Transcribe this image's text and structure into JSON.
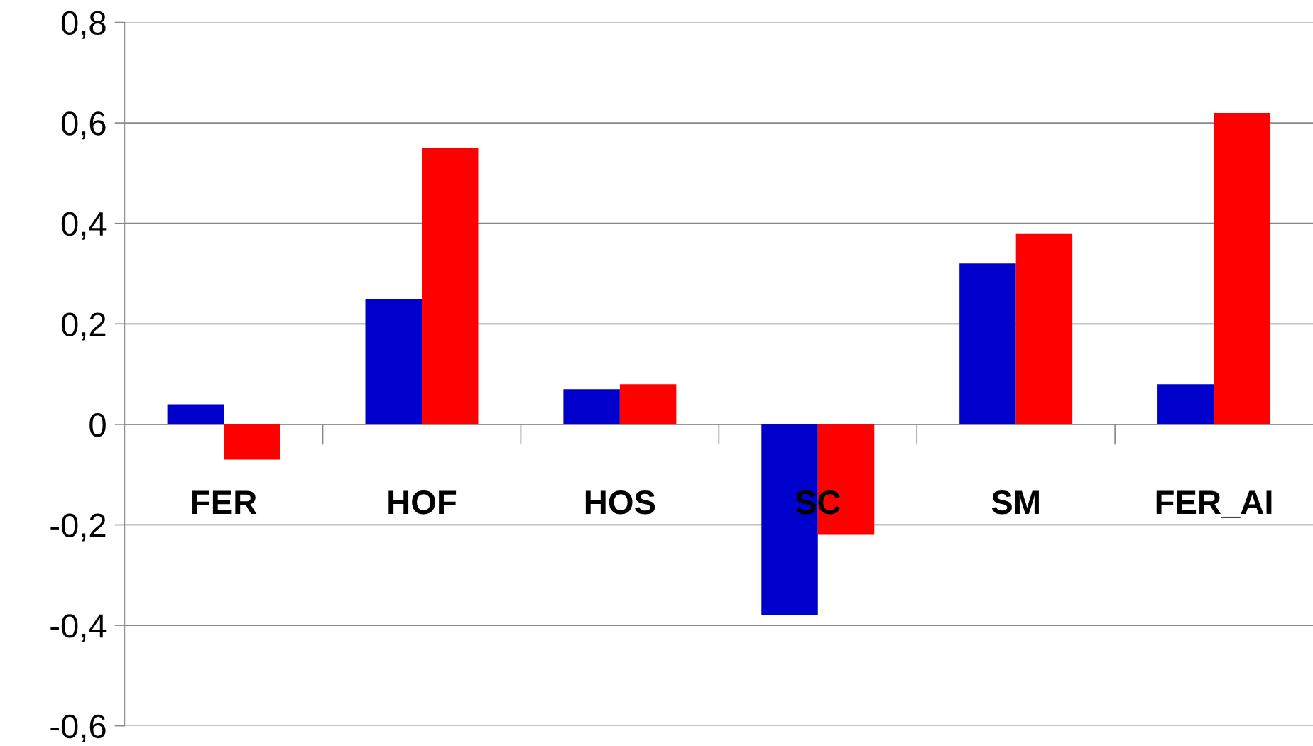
{
  "chart_data": {
    "type": "bar",
    "categories": [
      "FER",
      "HOF",
      "HOS",
      "SC",
      "SM",
      "FER_AI"
    ],
    "series": [
      {
        "color": "#0000cc",
        "values": [
          0.04,
          0.25,
          0.07,
          -0.38,
          0.32,
          0.08
        ]
      },
      {
        "color": "#ff0000",
        "values": [
          -0.07,
          0.55,
          0.08,
          -0.22,
          0.38,
          0.62
        ]
      }
    ],
    "ylim": [
      -0.6,
      0.8
    ],
    "yticks": [
      {
        "value": -0.6,
        "label": "-0,6"
      },
      {
        "value": -0.4,
        "label": "-0,4"
      },
      {
        "value": -0.2,
        "label": "-0,2"
      },
      {
        "value": 0,
        "label": "0"
      },
      {
        "value": 0.2,
        "label": "0,2"
      },
      {
        "value": 0.4,
        "label": "0,4"
      },
      {
        "value": 0.6,
        "label": "0,6"
      },
      {
        "value": 0.8,
        "label": "0,8"
      }
    ],
    "grid": "y"
  }
}
